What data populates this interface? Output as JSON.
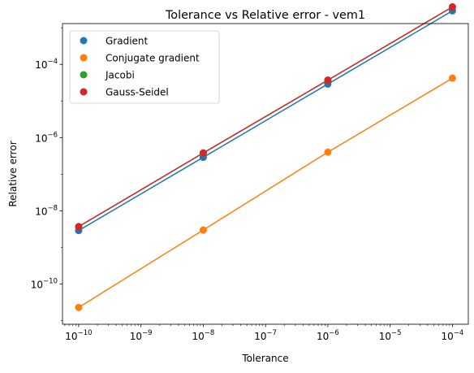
{
  "chart_data": {
    "type": "line",
    "title": "Tolerance vs Relative error - vem1",
    "xlabel": "Tolerance",
    "ylabel": "Relative error",
    "xscale": "log",
    "yscale": "log",
    "xlim": [
      5.5e-11,
      0.00018
    ],
    "ylim": [
      8e-12,
      0.0013
    ],
    "x_ticks": [
      {
        "base": "10",
        "exp": "−10",
        "value": 1e-10
      },
      {
        "base": "10",
        "exp": "−9",
        "value": 1e-09
      },
      {
        "base": "10",
        "exp": "−8",
        "value": 1e-08
      },
      {
        "base": "10",
        "exp": "−7",
        "value": 1e-07
      },
      {
        "base": "10",
        "exp": "−6",
        "value": 1e-06
      },
      {
        "base": "10",
        "exp": "−5",
        "value": 1e-05
      },
      {
        "base": "10",
        "exp": "−4",
        "value": 0.0001
      }
    ],
    "y_ticks": [
      {
        "base": "10",
        "exp": "−10",
        "value": 1e-10
      },
      {
        "base": "10",
        "exp": "−8",
        "value": 1e-08
      },
      {
        "base": "10",
        "exp": "−6",
        "value": 1e-06
      },
      {
        "base": "10",
        "exp": "−4",
        "value": 0.0001
      }
    ],
    "grid": false,
    "legend_position": "top-left",
    "x": [
      1e-10,
      1e-08,
      1e-06,
      0.0001
    ],
    "series": [
      {
        "name": "Gradient",
        "color": "#1f77b4",
        "values": [
          2.9e-09,
          2.9e-07,
          2.9e-05,
          0.0029
        ]
      },
      {
        "name": "Conjugate gradient",
        "color": "#ff7f0e",
        "values": [
          2.3e-11,
          3e-09,
          4e-07,
          4.2e-05
        ]
      },
      {
        "name": "Jacobi",
        "color": "#2ca02c",
        "values": [
          3.7e-09,
          3.8e-07,
          3.7e-05,
          0.0037
        ]
      },
      {
        "name": "Gauss-Seidel",
        "color": "#d62728",
        "values": [
          3.7e-09,
          3.8e-07,
          3.7e-05,
          0.0037
        ]
      }
    ]
  }
}
